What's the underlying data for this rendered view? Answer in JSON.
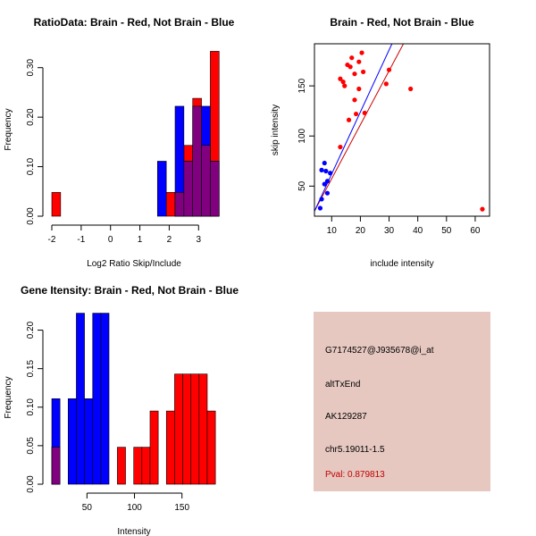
{
  "colors": {
    "red": "#ff0000",
    "blue": "#0000ff",
    "overlap": "#800080",
    "dark_red": "#cc0000",
    "panel_bg": "#e6c8c0",
    "pval_text": "#c00000"
  },
  "chart_data": [
    {
      "id": "ratio",
      "type": "histogram",
      "title": "RatioData: Brain - Red, Not Brain - Blue",
      "xlabel": "Log2 Ratio Skip/Include",
      "ylabel": "Frequency",
      "xlim": [
        -2,
        3.6
      ],
      "ylim": [
        0,
        0.35
      ],
      "xticks": [
        {
          "value": -2,
          "label": "-2"
        },
        {
          "value": -1,
          "label": "-1"
        },
        {
          "value": 0,
          "label": "0"
        },
        {
          "value": 1,
          "label": "1"
        },
        {
          "value": 2,
          "label": "2"
        },
        {
          "value": 3,
          "label": "3"
        }
      ],
      "yticks": [
        {
          "value": 0,
          "label": "0.00"
        },
        {
          "value": 0.1,
          "label": "0.10"
        },
        {
          "value": 0.2,
          "label": "0.20"
        },
        {
          "value": 0.3,
          "label": "0.30"
        }
      ],
      "bin_width": 0.3,
      "series": [
        {
          "name": "Brain",
          "color": "red",
          "bins": [
            {
              "x": -2.0,
              "value": 0.048
            },
            {
              "x": 1.9,
              "value": 0.048
            },
            {
              "x": 2.2,
              "value": 0.048
            },
            {
              "x": 2.5,
              "value": 0.143
            },
            {
              "x": 2.8,
              "value": 0.238
            },
            {
              "x": 3.1,
              "value": 0.143
            },
            {
              "x": 3.4,
              "value": 0.333
            }
          ]
        },
        {
          "name": "Not Brain",
          "color": "blue",
          "bins": [
            {
              "x": 1.6,
              "value": 0.111
            },
            {
              "x": 2.2,
              "value": 0.222
            },
            {
              "x": 2.5,
              "value": 0.111
            },
            {
              "x": 2.8,
              "value": 0.222
            },
            {
              "x": 3.1,
              "value": 0.222
            },
            {
              "x": 3.4,
              "value": 0.111
            }
          ]
        }
      ]
    },
    {
      "id": "scatter",
      "type": "scatter",
      "title": "Brain - Red, Not Brain - Blue",
      "xlabel": "include intensity",
      "ylabel": "skip intensity",
      "xlim": [
        4,
        65
      ],
      "ylim": [
        20,
        192
      ],
      "xticks": [
        {
          "value": 10,
          "label": "10"
        },
        {
          "value": 20,
          "label": "20"
        },
        {
          "value": 30,
          "label": "30"
        },
        {
          "value": 40,
          "label": "40"
        },
        {
          "value": 50,
          "label": "50"
        },
        {
          "value": 60,
          "label": "60"
        }
      ],
      "yticks": [
        {
          "value": 50,
          "label": "50"
        },
        {
          "value": 100,
          "label": "100"
        },
        {
          "value": 150,
          "label": "150"
        }
      ],
      "series": [
        {
          "name": "Brain",
          "color": "red",
          "points": [
            [
              20.5,
              183
            ],
            [
              15.5,
              171
            ],
            [
              17.0,
              178
            ],
            [
              19.5,
              174
            ],
            [
              16.5,
              169
            ],
            [
              21.0,
              164
            ],
            [
              18.0,
              162
            ],
            [
              30.0,
              166
            ],
            [
              13.0,
              157
            ],
            [
              14.0,
              154
            ],
            [
              14.5,
              150
            ],
            [
              19.5,
              147
            ],
            [
              29.0,
              152
            ],
            [
              37.5,
              147
            ],
            [
              18.0,
              136
            ],
            [
              21.5,
              123
            ],
            [
              18.5,
              122
            ],
            [
              16.0,
              116
            ],
            [
              13.0,
              89
            ],
            [
              62.5,
              27
            ]
          ]
        },
        {
          "name": "Not Brain",
          "color": "blue",
          "points": [
            [
              7.5,
              73
            ],
            [
              6.5,
              66
            ],
            [
              8.0,
              65
            ],
            [
              9.5,
              63
            ],
            [
              8.5,
              55
            ],
            [
              7.5,
              52
            ],
            [
              8.5,
              43
            ],
            [
              6.5,
              37
            ],
            [
              6.0,
              28
            ]
          ]
        }
      ],
      "fit_lines": [
        {
          "name": "Brain fit",
          "color": "dark_red",
          "x": [
            4,
            35
          ],
          "y": [
            25,
            192
          ]
        },
        {
          "name": "Not Brain fit",
          "color": "blue",
          "x": [
            4,
            31
          ],
          "y": [
            25,
            192
          ]
        }
      ]
    },
    {
      "id": "gene",
      "type": "histogram",
      "title": "Gene Itensity: Brain - Red, Not Brain - Blue",
      "xlabel": "Intensity",
      "ylabel": "Frequency",
      "xlim": [
        13,
        186
      ],
      "ylim": [
        0,
        0.225
      ],
      "xticks": [
        {
          "value": 50,
          "label": "50"
        },
        {
          "value": 100,
          "label": "100"
        },
        {
          "value": 150,
          "label": "150"
        }
      ],
      "yticks": [
        {
          "value": 0,
          "label": "0.00"
        },
        {
          "value": 0.05,
          "label": "0.05"
        },
        {
          "value": 0.1,
          "label": "0.10"
        },
        {
          "value": 0.15,
          "label": "0.15"
        },
        {
          "value": 0.2,
          "label": "0.20"
        }
      ],
      "bin_width": 8.6,
      "series": [
        {
          "name": "Brain",
          "color": "red",
          "bins": [
            {
              "x": 13.0,
              "value": 0.048
            },
            {
              "x": 82.0,
              "value": 0.048
            },
            {
              "x": 99.2,
              "value": 0.048
            },
            {
              "x": 107.8,
              "value": 0.048
            },
            {
              "x": 116.4,
              "value": 0.095
            },
            {
              "x": 133.6,
              "value": 0.095
            },
            {
              "x": 142.2,
              "value": 0.143
            },
            {
              "x": 150.8,
              "value": 0.143
            },
            {
              "x": 159.4,
              "value": 0.143
            },
            {
              "x": 168.0,
              "value": 0.143
            },
            {
              "x": 176.6,
              "value": 0.095
            }
          ]
        },
        {
          "name": "Not Brain",
          "color": "blue",
          "bins": [
            {
              "x": 13.0,
              "value": 0.111
            },
            {
              "x": 30.2,
              "value": 0.111
            },
            {
              "x": 38.8,
              "value": 0.222
            },
            {
              "x": 47.4,
              "value": 0.111
            },
            {
              "x": 56.0,
              "value": 0.222
            },
            {
              "x": 64.6,
              "value": 0.222
            }
          ]
        }
      ]
    }
  ],
  "info": {
    "probe_id": "G7174527@J935678@i_at",
    "event_type": "altTxEnd",
    "accession": "AK129287",
    "location": "chr5.19011-1.5",
    "pval": "Pval: 0.879813"
  }
}
